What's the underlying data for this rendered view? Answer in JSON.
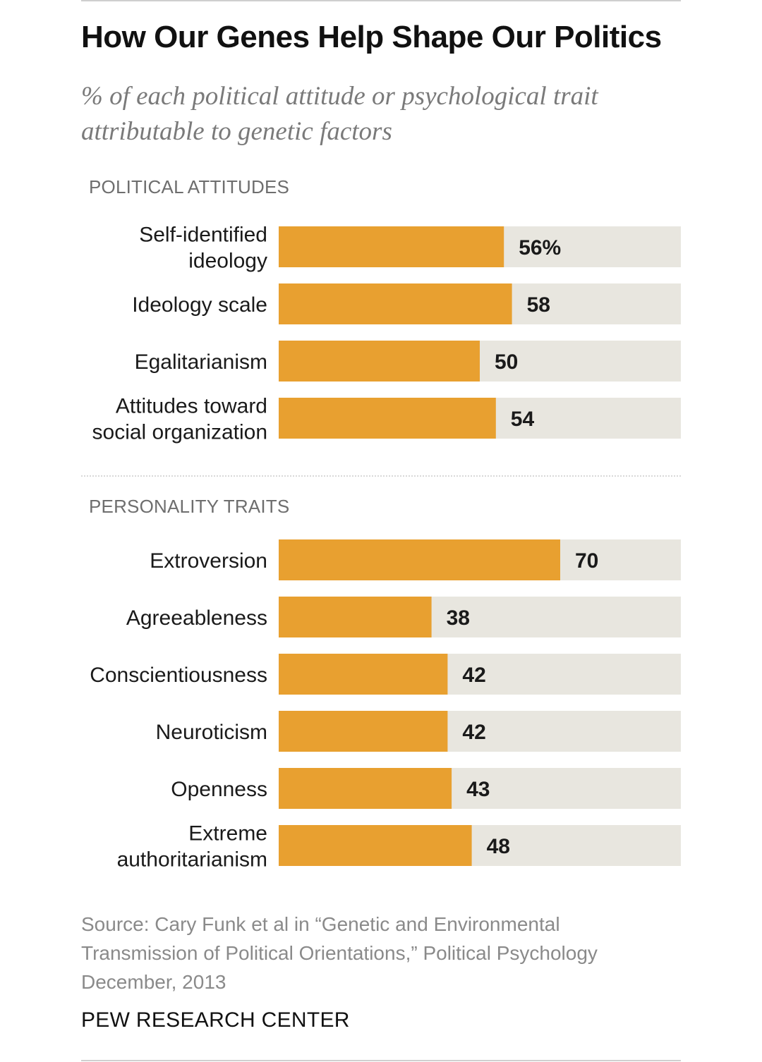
{
  "title": "How Our Genes Help Shape Our Politics",
  "subtitle_lines": [
    "% of each political attitude or psychological trait",
    "attributable to genetic factors"
  ],
  "colors": {
    "bar": "#e8a030",
    "track": "#e8e6df",
    "label": "#1a1a1a",
    "value": "#1a1a1a"
  },
  "chart_data": {
    "type": "bar",
    "orientation": "horizontal",
    "xlim": [
      0,
      100
    ],
    "unit": "%",
    "groups": [
      {
        "name": "POLITICAL ATTITUDES",
        "categories": [
          [
            "Self-identified",
            "ideology"
          ],
          [
            "Ideology scale"
          ],
          [
            "Egalitarianism"
          ],
          [
            "Attitudes toward",
            "social organization"
          ]
        ],
        "values": [
          56,
          58,
          50,
          54
        ],
        "value_labels": [
          "56%",
          "58",
          "50",
          "54"
        ]
      },
      {
        "name": "PERSONALITY TRAITS",
        "categories": [
          [
            "Extroversion"
          ],
          [
            "Agreeableness"
          ],
          [
            "Conscientiousness"
          ],
          [
            "Neuroticism"
          ],
          [
            "Openness"
          ],
          [
            "Extreme",
            "authoritarianism"
          ]
        ],
        "values": [
          70,
          38,
          42,
          42,
          43,
          48
        ],
        "value_labels": [
          "70",
          "38",
          "42",
          "42",
          "43",
          "48"
        ]
      }
    ]
  },
  "source_lines": [
    "Source: Cary Funk et al in “Genetic and Environmental",
    "Transmission of Political Orientations,” Political Psychology",
    "December, 2013"
  ],
  "org": "PEW RESEARCH CENTER"
}
